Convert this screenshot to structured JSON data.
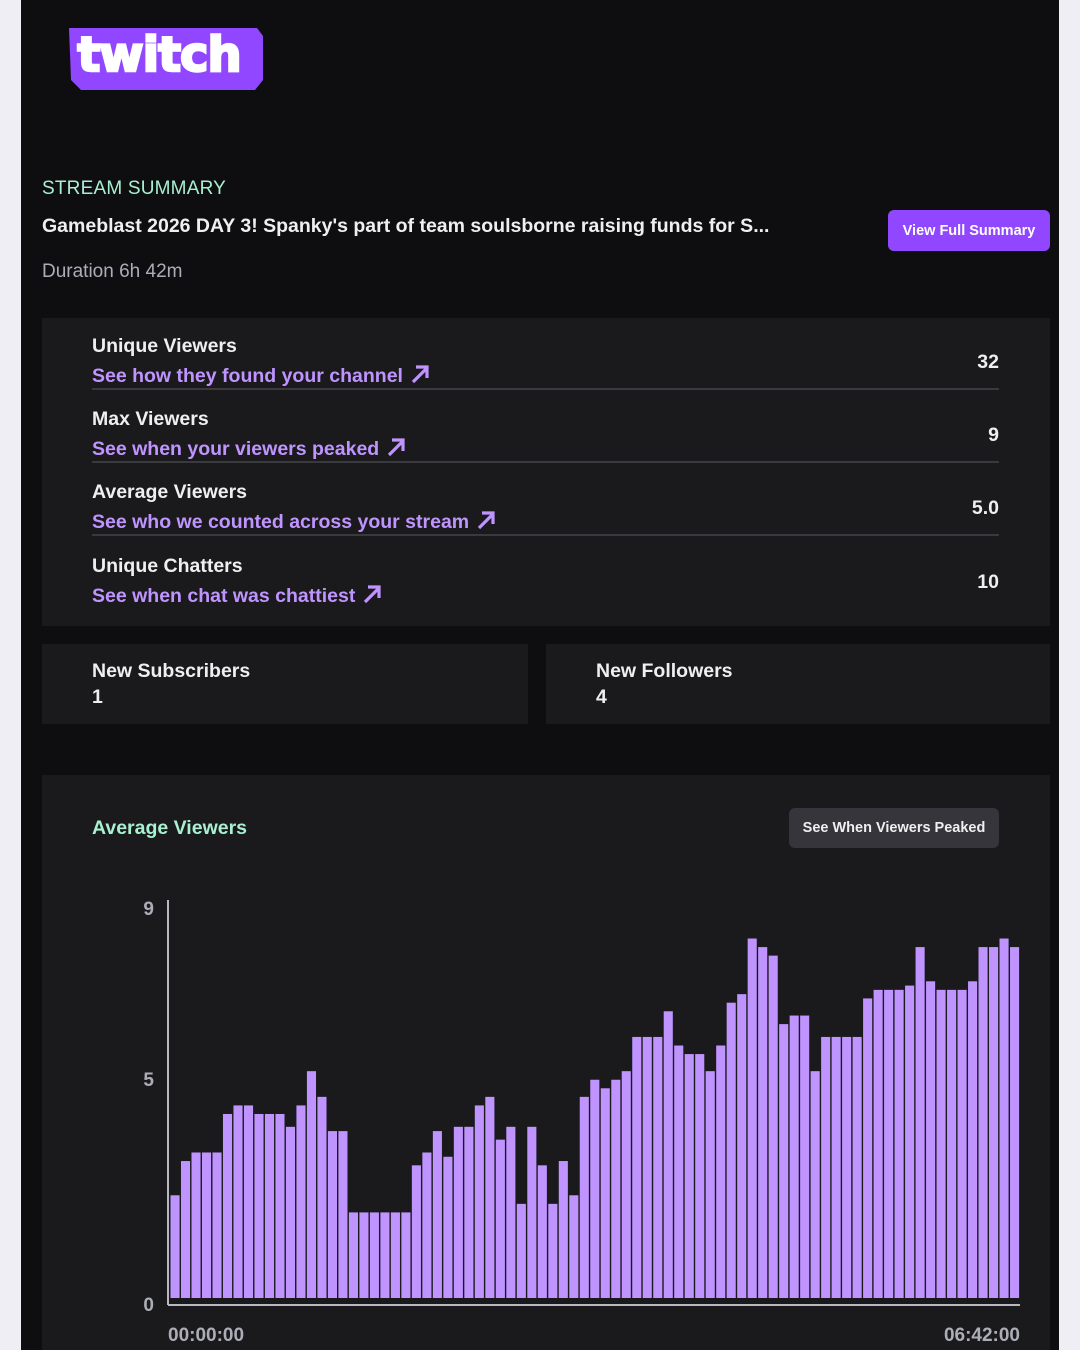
{
  "brand": {
    "logo_text": "twitch",
    "accent": "#9147ff",
    "link_color": "#bf94ff",
    "heading_color": "#a8f0d0"
  },
  "summary": {
    "label": "STREAM SUMMARY",
    "title": "Gameblast 2026 DAY 3! Spanky's part of team soulsborne raising funds for S...",
    "duration": "Duration 6h 42m",
    "view_button": "View Full Summary"
  },
  "stats": [
    {
      "label": "Unique Viewers",
      "link": "See how they found your channel",
      "value": "32",
      "icon": "arrow-up-right-icon"
    },
    {
      "label": "Max Viewers",
      "link": "See when your viewers peaked",
      "value": "9",
      "icon": "arrow-up-right-icon"
    },
    {
      "label": "Average Viewers",
      "link": "See who we counted across your stream",
      "value": "5.0",
      "icon": "arrow-up-right-icon"
    },
    {
      "label": "Unique Chatters",
      "link": "See when chat was chattiest",
      "value": "10",
      "icon": "arrow-up-right-icon"
    }
  ],
  "subscribers": {
    "label": "New Subscribers",
    "value": "1"
  },
  "followers": {
    "label": "New Followers",
    "value": "4"
  },
  "chart_section": {
    "title": "Average Viewers",
    "button": "See When Viewers Peaked"
  },
  "chart_data": {
    "type": "bar",
    "title": "Average Viewers",
    "xlabel": "",
    "ylabel": "",
    "x_tick_labels": [
      "00:00:00",
      "06:42:00"
    ],
    "y_ticks": [
      0,
      5,
      9
    ],
    "ylim": [
      0,
      9.3
    ],
    "bar_color": "#bf94ff",
    "grid": false,
    "values": [
      2.4,
      3.2,
      3.4,
      3.4,
      3.4,
      4.3,
      4.5,
      4.5,
      4.3,
      4.3,
      4.3,
      4.0,
      4.5,
      5.3,
      4.7,
      3.9,
      3.9,
      2.0,
      2.0,
      2.0,
      2.0,
      2.0,
      2.0,
      3.1,
      3.4,
      3.9,
      3.3,
      4.0,
      4.0,
      4.5,
      4.7,
      3.7,
      4.0,
      2.2,
      4.0,
      3.1,
      2.2,
      3.2,
      2.4,
      4.7,
      5.1,
      4.9,
      5.1,
      5.3,
      6.1,
      6.1,
      6.1,
      6.7,
      5.9,
      5.7,
      5.7,
      5.3,
      5.9,
      6.9,
      7.1,
      8.4,
      8.2,
      8.0,
      6.4,
      6.6,
      6.6,
      5.3,
      6.1,
      6.1,
      6.1,
      6.1,
      7.0,
      7.2,
      7.2,
      7.2,
      7.3,
      8.2,
      7.4,
      7.2,
      7.2,
      7.2,
      7.4,
      8.2,
      8.2,
      8.4,
      8.2
    ]
  }
}
